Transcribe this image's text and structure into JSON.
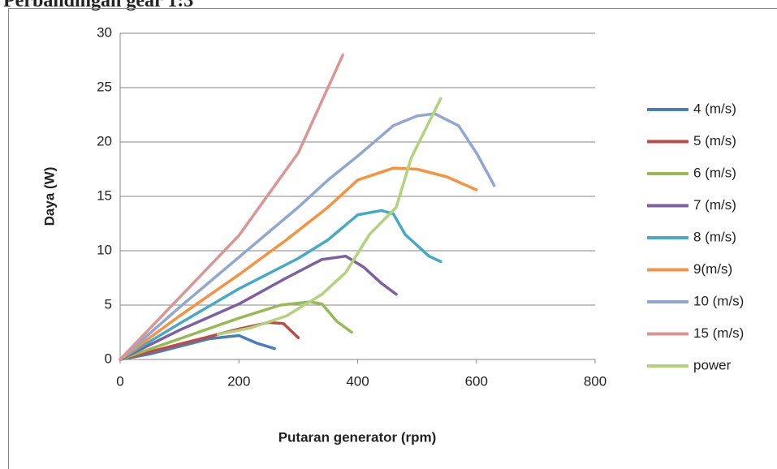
{
  "heading": "Perbandingan gear  1:3",
  "chart_data": {
    "type": "line",
    "xlabel": "Putaran generator (rpm)",
    "ylabel": "Daya (W)",
    "xlim": [
      0,
      800
    ],
    "xticks": [
      0,
      200,
      400,
      600,
      800
    ],
    "ylim": [
      0,
      30
    ],
    "yticks": [
      0,
      5,
      10,
      15,
      20,
      25,
      30
    ],
    "grid": true,
    "legend": "right",
    "series": [
      {
        "name": "4 (m/s)",
        "color": "#4a7ebb",
        "x": [
          0,
          50,
          100,
          150,
          200,
          230,
          260
        ],
        "values": [
          0,
          0.5,
          1.2,
          1.9,
          2.2,
          1.5,
          1
        ]
      },
      {
        "name": "5 (m/s)",
        "color": "#be4b48",
        "x": [
          0,
          100,
          200,
          250,
          275,
          300
        ],
        "values": [
          0,
          1.4,
          2.8,
          3.4,
          3.3,
          2
        ]
      },
      {
        "name": "6 (m/s)",
        "color": "#98b954",
        "x": [
          0,
          100,
          200,
          270,
          320,
          340,
          365,
          390
        ],
        "values": [
          0,
          1.9,
          3.8,
          5,
          5.3,
          5.1,
          3.5,
          2.5
        ]
      },
      {
        "name": "7 (m/s)",
        "color": "#7d60a0",
        "x": [
          0,
          100,
          200,
          280,
          340,
          380,
          410,
          440,
          465
        ],
        "values": [
          0,
          2.7,
          5.1,
          7.5,
          9.2,
          9.5,
          8.5,
          7,
          6
        ]
      },
      {
        "name": "8 (m/s)",
        "color": "#46aac5",
        "x": [
          0,
          100,
          200,
          300,
          350,
          400,
          440,
          460,
          480,
          520,
          540
        ],
        "values": [
          0,
          3.3,
          6.5,
          9.3,
          11,
          13.3,
          13.7,
          13.4,
          11.5,
          9.5,
          9
        ]
      },
      {
        "name": "9(m/s)",
        "color": "#f69240",
        "x": [
          0,
          100,
          200,
          280,
          350,
          400,
          460,
          500,
          550,
          600
        ],
        "values": [
          0,
          4,
          7.8,
          11,
          14,
          16.5,
          17.6,
          17.5,
          16.8,
          15.6
        ]
      },
      {
        "name": "10 (m/s)",
        "color": "#91a6d1",
        "x": [
          0,
          100,
          200,
          300,
          350,
          400,
          460,
          500,
          530,
          570,
          600,
          630
        ],
        "values": [
          0,
          4.8,
          9.4,
          14,
          16.5,
          18.7,
          21.5,
          22.4,
          22.6,
          21.5,
          19,
          16
        ]
      },
      {
        "name": "15 (m/s)",
        "color": "#d99694",
        "x": [
          0,
          100,
          200,
          300,
          375
        ],
        "values": [
          0,
          5.7,
          11.4,
          19,
          28
        ]
      },
      {
        "name": "power",
        "color": "#b3d27e",
        "x": [
          165,
          220,
          280,
          340,
          380,
          420,
          465,
          490,
          540
        ],
        "values": [
          2.3,
          2.9,
          4,
          6,
          8,
          11.5,
          14,
          18.5,
          24
        ]
      }
    ]
  }
}
